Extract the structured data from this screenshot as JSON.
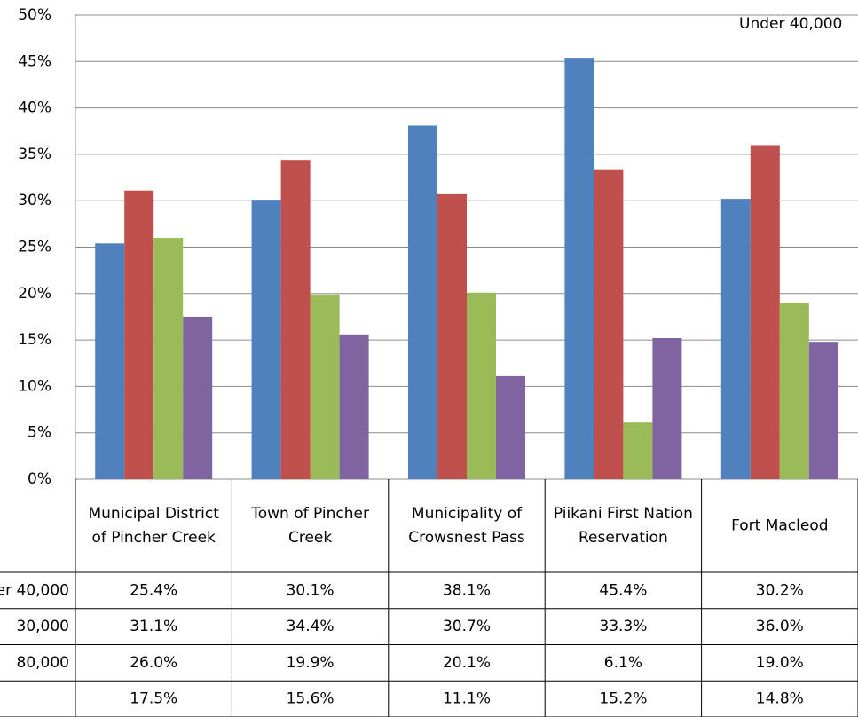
{
  "chart_data": {
    "type": "bar",
    "categories": [
      "Municipal District of Pincher Creek",
      "Town of Pincher Creek",
      "Municipality of Crowsnest Pass",
      "Piikani First Nation Reservation",
      "Fort Macleod"
    ],
    "series": [
      {
        "name": "Under 40,000",
        "color": "#4f81bd",
        "values": [
          25.4,
          30.1,
          38.1,
          45.4,
          30.2
        ],
        "value_labels": [
          "25.4%",
          "30.1%",
          "38.1%",
          "45.4%",
          "30.2%"
        ]
      },
      {
        "name": "30,000",
        "color": "#c0504d",
        "values": [
          31.1,
          34.4,
          30.7,
          33.3,
          36.0
        ],
        "value_labels": [
          "31.1%",
          "34.4%",
          "30.7%",
          "33.3%",
          "36.0%"
        ]
      },
      {
        "name": "80,000",
        "color": "#9bbb59",
        "values": [
          26.0,
          19.9,
          20.1,
          6.1,
          19.0
        ],
        "value_labels": [
          "26.0%",
          "19.9%",
          "20.1%",
          "6.1%",
          "19.0%"
        ]
      },
      {
        "color": "#8064a2",
        "values": [
          17.5,
          15.6,
          11.1,
          15.2,
          14.8
        ],
        "value_labels": [
          "17.5%",
          "15.6%",
          "11.1%",
          "15.2%",
          "14.8%"
        ]
      }
    ],
    "ylim": [
      0,
      50
    ],
    "yticks": [
      {
        "value": 0,
        "label": "0%"
      },
      {
        "value": 5,
        "label": "5%"
      },
      {
        "value": 10,
        "label": "10%"
      },
      {
        "value": 15,
        "label": "15%"
      },
      {
        "value": 20,
        "label": "20%"
      },
      {
        "value": 25,
        "label": "25%"
      },
      {
        "value": 30,
        "label": "30%"
      },
      {
        "value": 35,
        "label": "35%"
      },
      {
        "value": 40,
        "label": "40%"
      },
      {
        "value": 45,
        "label": "45%"
      },
      {
        "value": 50,
        "label": "50%"
      }
    ],
    "grid": true,
    "legend": "top-right"
  }
}
